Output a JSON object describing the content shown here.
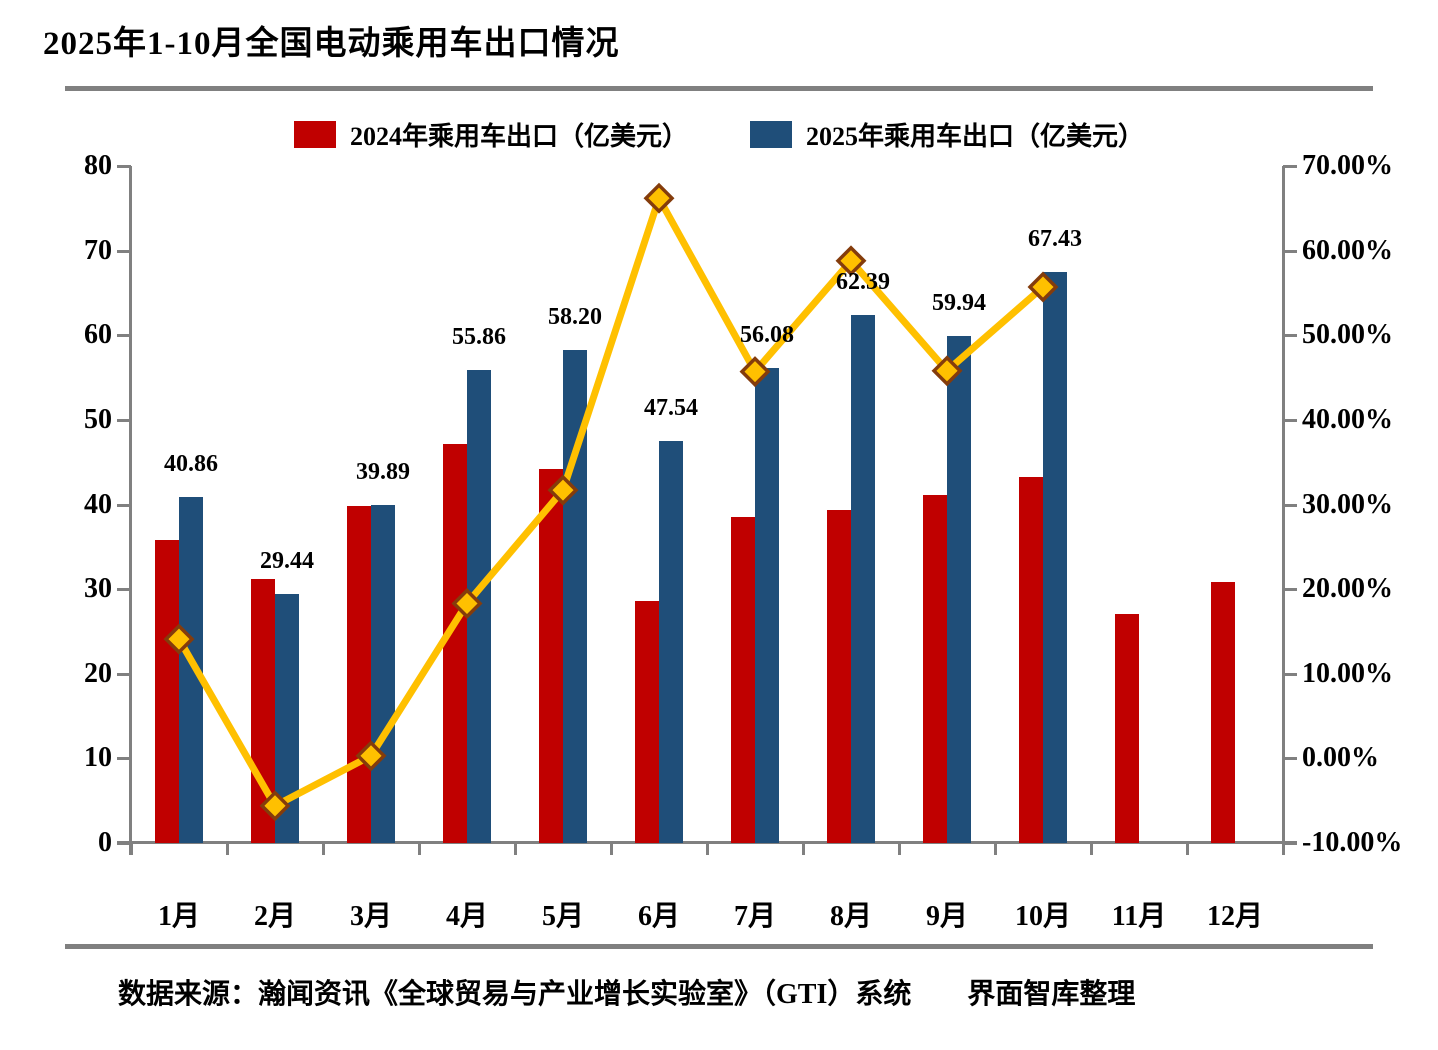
{
  "title": "2025年1-10月全国电动乘用车出口情况",
  "source_note": "数据来源：瀚闻资讯《全球贸易与产业增长实验室》（GTI）系统　　界面智库整理",
  "colors": {
    "bar_2024": "#C00000",
    "bar_2025": "#1F4E79",
    "growth_line": "#FFC000",
    "marker_edge": "#843C0C",
    "axis": "#808080",
    "separator": "#808080",
    "text": "#000000"
  },
  "legend": {
    "items": [
      {
        "label": "2024年乘用车出口（亿美元）",
        "color_key": "bar_2024"
      },
      {
        "label": "2025年乘用车出口（亿美元）",
        "color_key": "bar_2025"
      }
    ]
  },
  "chart_data": {
    "type": "bar",
    "subtype": "grouped-bars-with-line-on-secondary-axis",
    "title": "2025年1-10月全国电动乘用车出口情况",
    "categories": [
      "1月",
      "2月",
      "3月",
      "4月",
      "5月",
      "6月",
      "7月",
      "8月",
      "9月",
      "10月",
      "11月",
      "12月"
    ],
    "series": [
      {
        "name": "2024年乘用车出口（亿美元）",
        "type": "bar",
        "axis": "left",
        "values": [
          35.8,
          31.2,
          39.8,
          47.2,
          44.2,
          28.6,
          38.5,
          39.3,
          41.1,
          43.3,
          27.1,
          30.9
        ]
      },
      {
        "name": "2025年乘用车出口（亿美元）",
        "type": "bar",
        "axis": "left",
        "values": [
          40.86,
          29.44,
          39.89,
          55.86,
          58.2,
          47.54,
          56.08,
          62.39,
          59.94,
          67.43,
          null,
          null
        ],
        "data_labels": [
          "40.86",
          "29.44",
          "39.89",
          "55.86",
          "58.20",
          "47.54",
          "56.08",
          "62.39",
          "59.94",
          "67.43",
          null,
          null
        ]
      },
      {
        "type": "line",
        "axis": "right",
        "values_pct": [
          14.1,
          -5.6,
          0.3,
          18.3,
          31.7,
          66.2,
          45.7,
          58.8,
          45.8,
          55.7,
          null,
          null
        ]
      }
    ],
    "left_axis": {
      "min": 0,
      "max": 80,
      "ticks": [
        "0",
        "10",
        "20",
        "30",
        "40",
        "50",
        "60",
        "70",
        "80"
      ]
    },
    "right_axis": {
      "min": -10,
      "max": 70,
      "ticks": [
        "-10.00%",
        "0.00%",
        "10.00%",
        "20.00%",
        "30.00%",
        "40.00%",
        "50.00%",
        "60.00%",
        "70.00%"
      ]
    },
    "grid": "off",
    "legend_position": "top-center"
  }
}
